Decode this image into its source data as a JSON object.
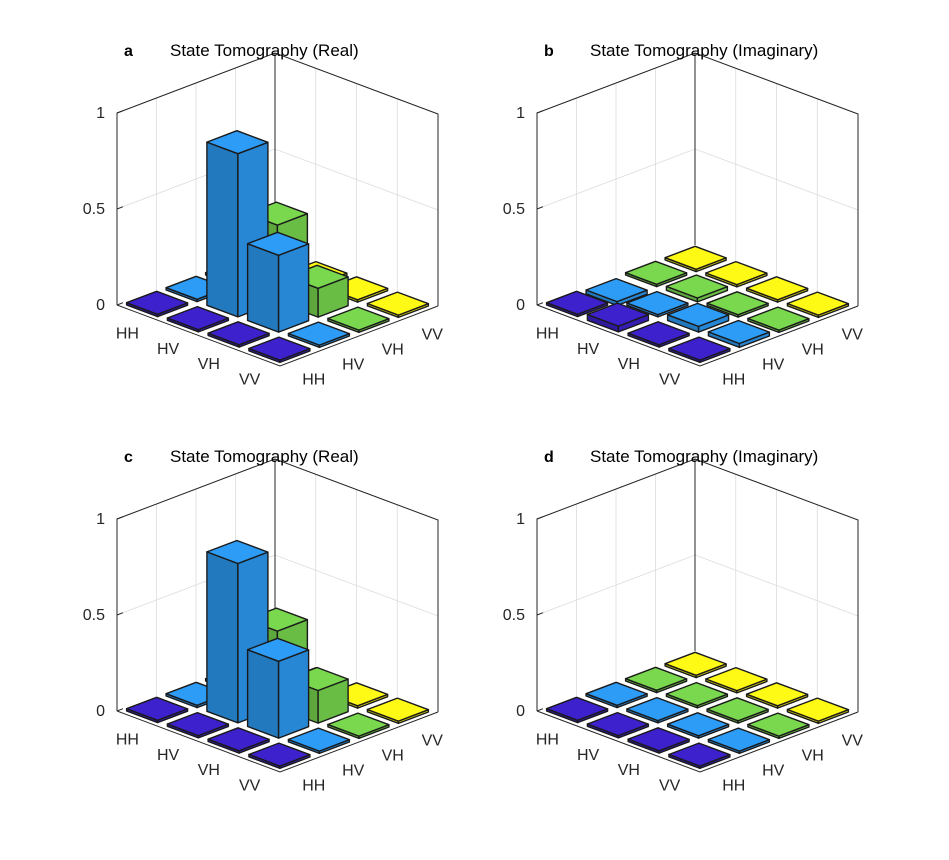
{
  "colors": {
    "HH": "#3a1fc0",
    "HV": "#2a93e8",
    "VH": "#72cc4a",
    "VV": "#f4ec14"
  },
  "chart_data": [
    {
      "type": "bar3d",
      "panel_label": "a",
      "title": "State Tomography (Real)",
      "row_labels": [
        "HH",
        "HV",
        "VH",
        "VV"
      ],
      "col_labels": [
        "HH",
        "HV",
        "VH",
        "VV"
      ],
      "z_ticks": [
        "0",
        "0.5",
        "1"
      ],
      "zlim": [
        0,
        1
      ],
      "values": [
        [
          0.0,
          0.0,
          0.0,
          0.0
        ],
        [
          0.0,
          0.85,
          0.4,
          0.0
        ],
        [
          0.0,
          0.4,
          0.15,
          0.0
        ],
        [
          0.0,
          0.0,
          0.0,
          0.0
        ]
      ]
    },
    {
      "type": "bar3d",
      "panel_label": "b",
      "title": "State Tomography (Imaginary)",
      "row_labels": [
        "HH",
        "HV",
        "VH",
        "VV"
      ],
      "col_labels": [
        "HH",
        "HV",
        "VH",
        "VV"
      ],
      "z_ticks": [
        "0",
        "0.5",
        "1"
      ],
      "zlim": [
        0,
        1
      ],
      "values": [
        [
          0.0,
          -0.02,
          0.0,
          0.0
        ],
        [
          0.03,
          0.0,
          0.02,
          0.0
        ],
        [
          0.0,
          0.03,
          0.0,
          0.0
        ],
        [
          0.0,
          0.02,
          0.0,
          0.0
        ]
      ]
    },
    {
      "type": "bar3d",
      "panel_label": "c",
      "title": "State Tomography (Real)",
      "row_labels": [
        "HH",
        "HV",
        "VH",
        "VV"
      ],
      "col_labels": [
        "HH",
        "HV",
        "VH",
        "VV"
      ],
      "z_ticks": [
        "0",
        "0.5",
        "1"
      ],
      "zlim": [
        0,
        1
      ],
      "values": [
        [
          0.0,
          0.0,
          0.0,
          0.0
        ],
        [
          0.0,
          0.83,
          0.4,
          0.0
        ],
        [
          0.0,
          0.4,
          0.17,
          0.0
        ],
        [
          0.0,
          0.0,
          0.0,
          0.0
        ]
      ]
    },
    {
      "type": "bar3d",
      "panel_label": "d",
      "title": "State Tomography (Imaginary)",
      "row_labels": [
        "HH",
        "HV",
        "VH",
        "VV"
      ],
      "col_labels": [
        "HH",
        "HV",
        "VH",
        "VV"
      ],
      "z_ticks": [
        "0",
        "0.5",
        "1"
      ],
      "zlim": [
        0,
        1
      ],
      "values": [
        [
          0.0,
          0.0,
          0.0,
          0.0
        ],
        [
          0.0,
          0.0,
          0.0,
          0.0
        ],
        [
          0.0,
          0.0,
          0.0,
          0.0
        ],
        [
          0.0,
          0.0,
          0.0,
          0.0
        ]
      ]
    }
  ]
}
